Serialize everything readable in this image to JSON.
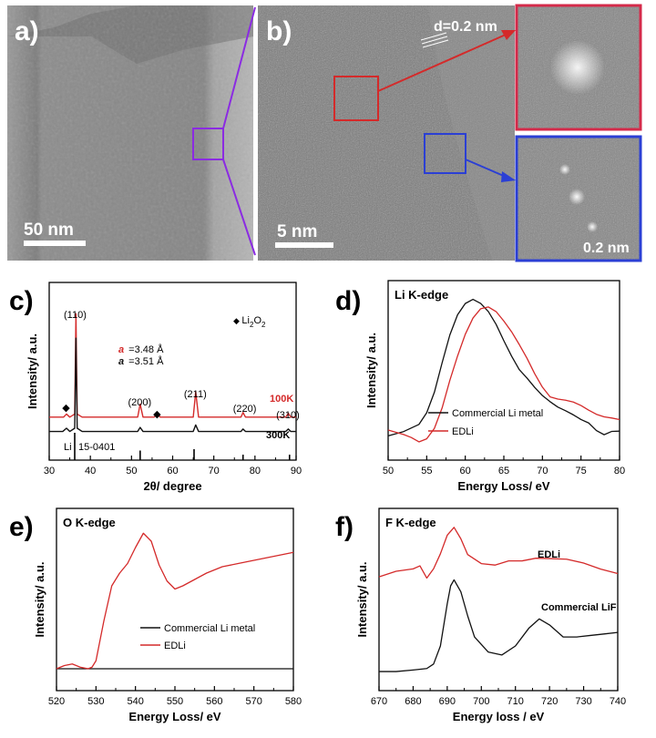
{
  "panels": {
    "a": {
      "label": "a)",
      "scale_bar": "50 nm"
    },
    "b": {
      "label": "b)",
      "scale_bar": "5 nm",
      "d_spacing": "d=0.2 nm",
      "inset_scale": "0.2 nm"
    },
    "c": {
      "label": "c)"
    },
    "d": {
      "label": "d)"
    },
    "e": {
      "label": "e)"
    },
    "f": {
      "label": "f)"
    }
  },
  "colors": {
    "red": "#d42a2a",
    "black": "#111111",
    "purple": "#8b2be2",
    "blue": "#2b3fd4",
    "inset_red": "#d42a4a"
  },
  "chart_data": [
    {
      "panel": "c",
      "type": "line",
      "xlabel": "2θ/ degree",
      "ylabel": "Intensity/ a.u.",
      "xlim": [
        30,
        90
      ],
      "xticks": [
        30,
        40,
        50,
        60,
        70,
        80,
        90
      ],
      "series": [
        {
          "name": "100K",
          "color": "#d42a2a",
          "x": [
            30,
            33.5,
            34.2,
            35,
            36.2,
            36.5,
            36.8,
            38,
            45,
            51.5,
            52.1,
            52.8,
            55.5,
            56.2,
            57,
            65,
            65.6,
            66.3,
            76.6,
            77.1,
            77.7,
            87.5,
            88.1,
            88.7,
            90
          ],
          "y": [
            0.5,
            0.5,
            0.9,
            0.5,
            0.9,
            14.0,
            0.9,
            0.5,
            0.5,
            0.5,
            2.2,
            0.5,
            0.5,
            0.9,
            0.5,
            0.5,
            3.8,
            0.5,
            0.5,
            1.1,
            0.5,
            0.5,
            1.0,
            0.5,
            0.5
          ]
        },
        {
          "name": "300K",
          "color": "#111111",
          "x": [
            30,
            33.3,
            34.2,
            35,
            36.2,
            36.5,
            36.8,
            38,
            45,
            51.5,
            52.1,
            52.8,
            65,
            65.6,
            66.3,
            76.6,
            77.1,
            77.7,
            87.5,
            88.1,
            88.7,
            90
          ],
          "y": [
            0.5,
            0.5,
            0.9,
            0.5,
            0.9,
            12.0,
            0.9,
            0.5,
            0.5,
            0.5,
            1.0,
            0.5,
            0.5,
            1.3,
            0.5,
            0.5,
            0.8,
            0.5,
            0.5,
            0.8,
            0.5,
            0.5
          ]
        }
      ],
      "reference": {
        "label": "Li",
        "card": "15-0401",
        "x": [
          36.2,
          52.1,
          65.2,
          77.1,
          88.4
        ],
        "h": [
          1.0,
          0.35,
          0.4,
          0.2,
          0.2
        ]
      },
      "peak_labels": [
        {
          "text": "(110)",
          "x": 36.3
        },
        {
          "text": "(200)",
          "x": 52.0
        },
        {
          "text": "(211)",
          "x": 65.5
        },
        {
          "text": "(220)",
          "x": 77.5
        },
        {
          "text": "(310)",
          "x": 88.0
        }
      ],
      "diamond_marks": [
        34.1,
        56.2
      ],
      "legend_symbol": "◆",
      "legend_text": "Li",
      "legend_sub1": "2",
      "legend_mid": "O",
      "legend_sub2": "2",
      "lattice": [
        {
          "sym": "a",
          "text": "=3.48 Å",
          "color": "#d42a2a"
        },
        {
          "sym": "a",
          "text": "=3.51 Å",
          "color": "#111111"
        }
      ]
    },
    {
      "panel": "d",
      "type": "line",
      "title": "Li K-edge",
      "xlabel": "Energy Loss/ eV",
      "ylabel": "Intensity/ a.u.",
      "xlim": [
        50,
        80
      ],
      "xticks": [
        50,
        55,
        60,
        65,
        70,
        75,
        80
      ],
      "series": [
        {
          "name": "Commercial Li metal",
          "color": "#111111",
          "x": [
            50,
            52,
            54,
            55,
            56,
            57,
            58,
            59,
            60,
            61,
            62,
            63,
            64,
            65,
            66,
            67,
            68,
            69,
            70,
            71,
            72,
            73,
            74,
            75,
            76,
            77,
            78,
            79,
            80
          ],
          "y": [
            0.06,
            0.1,
            0.15,
            0.22,
            0.35,
            0.55,
            0.75,
            0.9,
            0.98,
            1.0,
            0.96,
            0.9,
            0.82,
            0.72,
            0.62,
            0.52,
            0.45,
            0.38,
            0.33,
            0.3,
            0.27,
            0.24,
            0.2,
            0.16,
            0.14,
            0.1,
            0.08,
            0.1,
            0.09
          ]
        },
        {
          "name": "EDLi",
          "color": "#d42a2a",
          "x": [
            50,
            52,
            53,
            54,
            55,
            56,
            57,
            58,
            59,
            60,
            61,
            62,
            63,
            64,
            65,
            66,
            67,
            68,
            69,
            70,
            71,
            72,
            73,
            74,
            75,
            76,
            77,
            78,
            79,
            80
          ],
          "y": [
            0.1,
            0.08,
            0.06,
            0.02,
            0.03,
            0.1,
            0.25,
            0.45,
            0.62,
            0.76,
            0.86,
            0.92,
            0.94,
            0.92,
            0.86,
            0.78,
            0.68,
            0.58,
            0.48,
            0.4,
            0.34,
            0.32,
            0.3,
            0.28,
            0.26,
            0.24,
            0.22,
            0.2,
            0.18,
            0.16
          ]
        }
      ],
      "legend": "bottom-left"
    },
    {
      "panel": "e",
      "type": "line",
      "title": "O K-edge",
      "xlabel": "Energy Loss/ eV",
      "ylabel": "Intensity/ a.u.",
      "xlim": [
        520,
        580
      ],
      "xticks": [
        520,
        530,
        540,
        550,
        560,
        570,
        580
      ],
      "series": [
        {
          "name": "Commercial Li metal",
          "color": "#111111",
          "x": [
            520,
            530,
            540,
            550,
            560,
            570,
            580
          ],
          "y": [
            0.0,
            0.0,
            0.0,
            0.0,
            0.0,
            0.0,
            0.0
          ]
        },
        {
          "name": "EDLi",
          "color": "#d42a2a",
          "x": [
            520,
            522,
            524,
            526,
            528,
            529,
            530,
            532,
            534,
            536,
            538,
            540,
            542,
            544,
            546,
            548,
            550,
            552,
            555,
            558,
            562,
            566,
            570,
            574,
            578,
            580
          ],
          "y": [
            0.0,
            0.02,
            0.03,
            0.01,
            0.0,
            0.01,
            0.05,
            0.3,
            0.52,
            0.6,
            0.66,
            0.76,
            0.85,
            0.8,
            0.65,
            0.55,
            0.5,
            0.52,
            0.56,
            0.6,
            0.64,
            0.66,
            0.68,
            0.7,
            0.72,
            0.73
          ]
        }
      ],
      "legend": "bottom-right"
    },
    {
      "panel": "f",
      "type": "line",
      "title": "F K-edge",
      "xlabel": "Energy loss / eV",
      "ylabel": "Intensity/ a.u.",
      "xlim": [
        670,
        740
      ],
      "xticks": [
        670,
        680,
        690,
        700,
        710,
        720,
        730,
        740
      ],
      "series": [
        {
          "name": "EDLi",
          "color": "#d42a2a",
          "x": [
            670,
            675,
            680,
            682,
            684,
            686,
            688,
            690,
            692,
            694,
            696,
            700,
            704,
            708,
            712,
            716,
            720,
            725,
            730,
            735,
            740
          ],
          "y": [
            0.66,
            0.68,
            0.7,
            0.74,
            0.67,
            0.72,
            0.8,
            0.92,
            0.99,
            0.93,
            0.82,
            0.74,
            0.72,
            0.76,
            0.78,
            0.8,
            0.78,
            0.76,
            0.74,
            0.72,
            0.7
          ]
        },
        {
          "name": "Commercial LiF",
          "color": "#111111",
          "x": [
            670,
            675,
            680,
            684,
            686,
            688,
            690,
            691,
            692,
            694,
            696,
            698,
            702,
            706,
            710,
            714,
            717,
            720,
            724,
            728,
            732,
            736,
            740
          ],
          "y": [
            0.03,
            0.03,
            0.04,
            0.05,
            0.08,
            0.2,
            0.48,
            0.6,
            0.64,
            0.56,
            0.4,
            0.26,
            0.16,
            0.14,
            0.2,
            0.32,
            0.38,
            0.34,
            0.26,
            0.26,
            0.27,
            0.28,
            0.29
          ]
        }
      ],
      "labels": [
        "EDLi",
        "Commercial LiF"
      ]
    }
  ]
}
